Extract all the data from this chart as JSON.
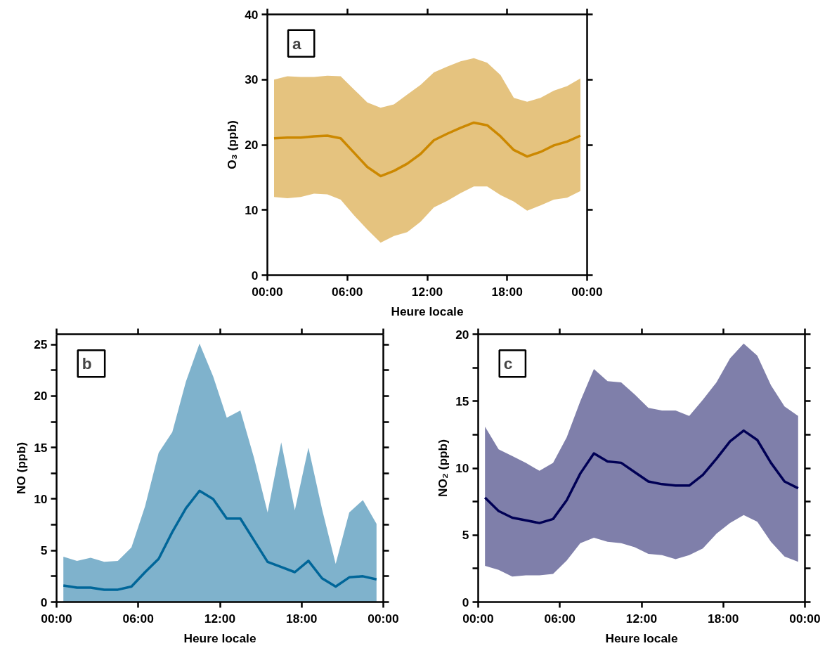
{
  "chart_data": [
    {
      "type": "line",
      "xlabel": "Heure locale",
      "ylabel": "O₃ (ppb)",
      "annotations": [
        "a"
      ],
      "x": [
        0.5,
        1.5,
        2.5,
        3.5,
        4.5,
        5.5,
        6.5,
        7.5,
        8.5,
        9.5,
        10.5,
        11.5,
        12.5,
        13.5,
        14.5,
        15.5,
        16.5,
        17.5,
        18.5,
        19.5,
        20.5,
        21.5,
        22.5,
        23.5
      ],
      "xlim": [
        0,
        24
      ],
      "xticks": [
        {
          "value": 0,
          "label": "00:00"
        },
        {
          "value": 6,
          "label": "06:00"
        },
        {
          "value": 12,
          "label": "12:00"
        },
        {
          "value": 18,
          "label": "18:00"
        },
        {
          "value": 24,
          "label": "00:00"
        }
      ],
      "ylim": [
        0,
        40
      ],
      "yticks": [
        0,
        10,
        20,
        30,
        40
      ],
      "grid": false,
      "line_style": "solid",
      "marker": "none",
      "series": [
        {
          "color": "#cc8800",
          "values": [
            21,
            21.1,
            21.1,
            21.3,
            21.4,
            21,
            18.8,
            16.6,
            15.2,
            16,
            17.1,
            18.6,
            20.7,
            21.7,
            22.6,
            23.4,
            23,
            21.3,
            19.2,
            18.2,
            18.9,
            19.9,
            20.5,
            21.4
          ],
          "upper": [
            30,
            30.5,
            30.4,
            30.4,
            30.6,
            30.5,
            28.5,
            26.5,
            25.7,
            26.2,
            27.7,
            29.2,
            31.1,
            32,
            32.8,
            33.3,
            32.6,
            30.7,
            27.2,
            26.6,
            27.2,
            28.3,
            29,
            30.2
          ],
          "lower": [
            12,
            11.8,
            12,
            12.5,
            12.4,
            11.6,
            9.2,
            7,
            5,
            6,
            6.6,
            8.2,
            10.4,
            11.4,
            12.6,
            13.6,
            13.6,
            12.3,
            11.3,
            9.9,
            10.7,
            11.6,
            11.9,
            12.9
          ]
        }
      ]
    },
    {
      "type": "line",
      "xlabel": "Heure locale",
      "ylabel": "NO (ppb)",
      "annotations": [
        "b"
      ],
      "x": [
        0.5,
        1.5,
        2.5,
        3.5,
        4.5,
        5.5,
        6.5,
        7.5,
        8.5,
        9.5,
        10.5,
        11.5,
        12.5,
        13.5,
        14.5,
        15.5,
        16.5,
        17.5,
        18.5,
        19.5,
        20.5,
        21.5,
        22.5,
        23.5
      ],
      "xlim": [
        0,
        24
      ],
      "xticks": [
        {
          "value": 0,
          "label": "00:00"
        },
        {
          "value": 6,
          "label": "06:00"
        },
        {
          "value": 12,
          "label": "12:00"
        },
        {
          "value": 18,
          "label": "18:00"
        },
        {
          "value": 24,
          "label": "00:00"
        }
      ],
      "ylim": [
        0,
        26
      ],
      "yticks": [
        0,
        {
          "value": 2.5,
          "label": null
        },
        5,
        {
          "value": 7.5,
          "label": null
        },
        10,
        {
          "value": 12.5,
          "label": null
        },
        15,
        {
          "value": 17.5,
          "label": null
        },
        20,
        {
          "value": 22.5,
          "label": null
        },
        25
      ],
      "grid": false,
      "line_style": "solid",
      "marker": "none",
      "series": [
        {
          "color": "#006699",
          "values": [
            1.6,
            1.4,
            1.4,
            1.2,
            1.2,
            1.5,
            2.9,
            4.2,
            6.8,
            9.1,
            10.8,
            10,
            8.1,
            8.1,
            6,
            3.9,
            3.4,
            2.9,
            4,
            2.3,
            1.5,
            2.4,
            2.5,
            2.2
          ],
          "upper": [
            4.4,
            4,
            4.3,
            3.9,
            4,
            5.3,
            9.3,
            14.5,
            16.5,
            21.4,
            25.1,
            21.9,
            17.9,
            18.6,
            14,
            8.7,
            15.5,
            8.9,
            15,
            9,
            3.7,
            8.7,
            9.9,
            7.6
          ],
          "lower": [
            0,
            0,
            0,
            0,
            0,
            0,
            0,
            0,
            0,
            0,
            0,
            0,
            0,
            0,
            0,
            0,
            0,
            0,
            0,
            0,
            0,
            0,
            0,
            0
          ]
        }
      ]
    },
    {
      "type": "line",
      "xlabel": "Heure locale",
      "ylabel": "NO₂ (ppb)",
      "annotations": [
        "c"
      ],
      "x": [
        0.5,
        1.5,
        2.5,
        3.5,
        4.5,
        5.5,
        6.5,
        7.5,
        8.5,
        9.5,
        10.5,
        11.5,
        12.5,
        13.5,
        14.5,
        15.5,
        16.5,
        17.5,
        18.5,
        19.5,
        20.5,
        21.5,
        22.5,
        23.5
      ],
      "xlim": [
        0,
        24
      ],
      "xticks": [
        {
          "value": 0,
          "label": "00:00"
        },
        {
          "value": 6,
          "label": "06:00"
        },
        {
          "value": 12,
          "label": "12:00"
        },
        {
          "value": 18,
          "label": "18:00"
        },
        {
          "value": 24,
          "label": "00:00"
        }
      ],
      "ylim": [
        0,
        20
      ],
      "yticks": [
        0,
        {
          "value": 2.5,
          "label": null
        },
        5,
        {
          "value": 7.5,
          "label": null
        },
        10,
        {
          "value": 12.5,
          "label": null
        },
        15,
        {
          "value": 17.5,
          "label": null
        },
        20
      ],
      "grid": false,
      "line_style": "solid",
      "marker": "none",
      "series": [
        {
          "color": "#000055",
          "values": [
            7.8,
            6.8,
            6.3,
            6.1,
            5.9,
            6.2,
            7.6,
            9.6,
            11.1,
            10.5,
            10.4,
            9.7,
            9,
            8.8,
            8.7,
            8.7,
            9.5,
            10.7,
            12,
            12.8,
            12.1,
            10.4,
            9,
            8.5
          ],
          "upper": [
            13.1,
            11.4,
            10.9,
            10.4,
            9.8,
            10.4,
            12.3,
            15,
            17.4,
            16.5,
            16.4,
            15.5,
            14.5,
            14.3,
            14.3,
            13.9,
            15.1,
            16.4,
            18.2,
            19.3,
            18.4,
            16.2,
            14.6,
            13.9
          ],
          "lower": [
            2.7,
            2.4,
            1.9,
            2,
            2,
            2.1,
            3.1,
            4.4,
            4.8,
            4.5,
            4.4,
            4.1,
            3.6,
            3.5,
            3.2,
            3.5,
            4,
            5.1,
            5.9,
            6.5,
            6,
            4.5,
            3.4,
            3
          ]
        }
      ]
    }
  ]
}
